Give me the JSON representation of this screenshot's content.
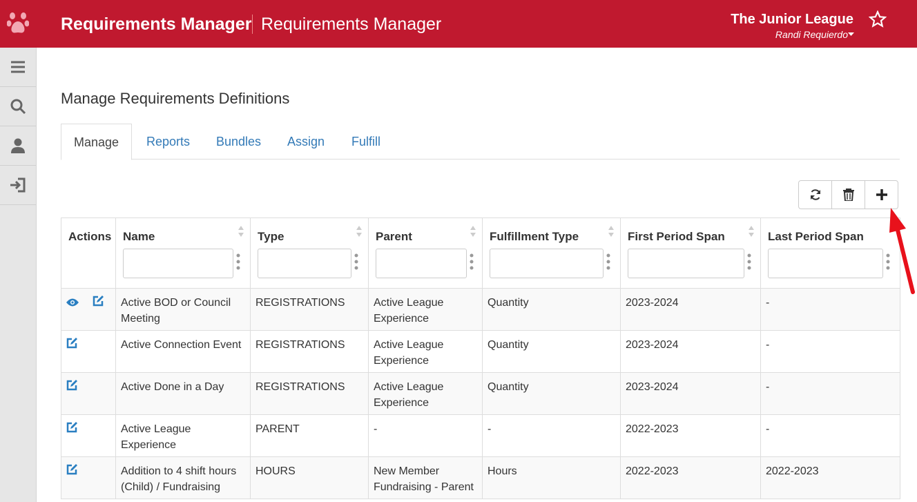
{
  "header": {
    "app_name": "Requirements Manager",
    "page_name": "Requirements Manager",
    "organization": "The Junior League",
    "user": "Randi Requierdo"
  },
  "page_title": "Manage Requirements Definitions",
  "tabs": [
    "Manage",
    "Reports",
    "Bundles",
    "Assign",
    "Fulfill"
  ],
  "table": {
    "columns": [
      "Actions",
      "Name",
      "Type",
      "Parent",
      "Fulfillment Type",
      "First Period Span",
      "Last Period Span"
    ],
    "rows": [
      [
        "Active BOD or Council Meeting",
        "REGISTRATIONS",
        "Active League Experience",
        "Quantity",
        "2023-2024",
        "-"
      ],
      [
        "Active Connection Event",
        "REGISTRATIONS",
        "Active League Experience",
        "Quantity",
        "2023-2024",
        "-"
      ],
      [
        "Active Done in a Day",
        "REGISTRATIONS",
        "Active League Experience",
        "Quantity",
        "2023-2024",
        "-"
      ],
      [
        "Active League Experience",
        "PARENT",
        "-",
        "-",
        "2022-2023",
        "-"
      ],
      [
        "Addition to 4 shift hours (Child) / Fundraising",
        "HOURS",
        "New Member Fundraising - Parent",
        "Hours",
        "2022-2023",
        "2022-2023"
      ]
    ]
  }
}
